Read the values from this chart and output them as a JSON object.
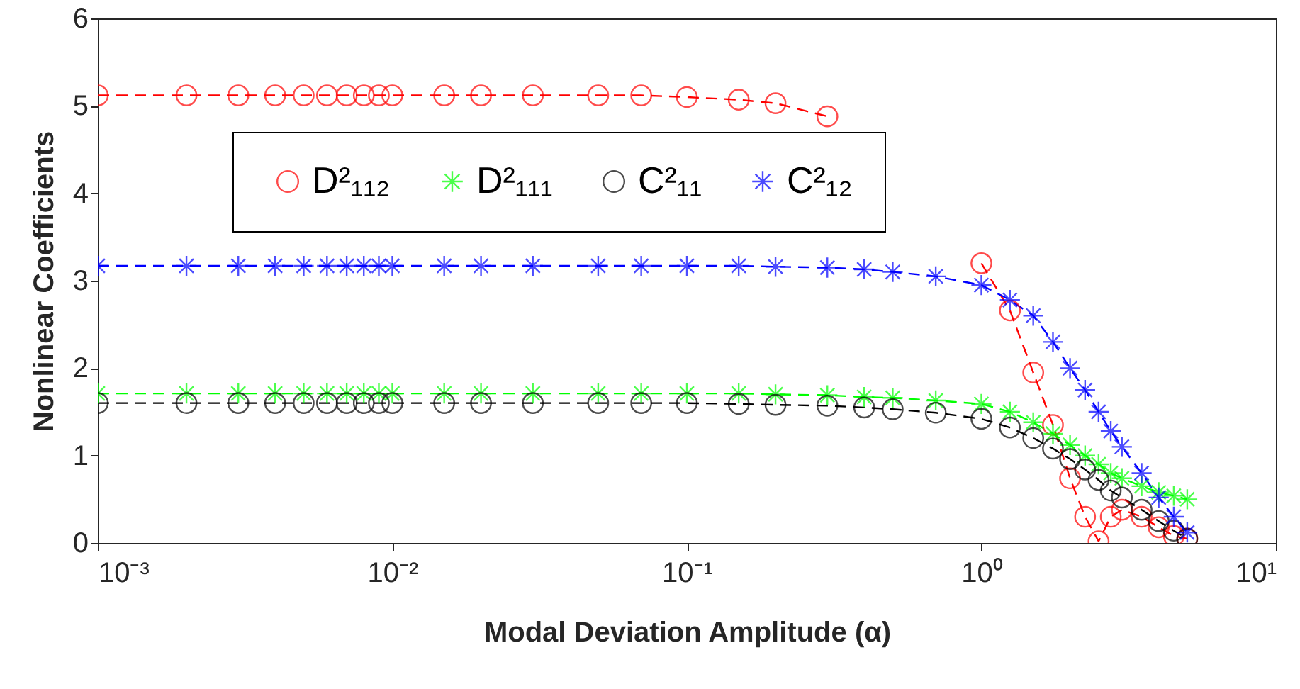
{
  "chart_data": {
    "type": "line",
    "xlabel": "Modal Deviation Amplitude (α)",
    "ylabel": "Nonlinear Coefficients",
    "log": "x",
    "x": [
      0.001,
      0.002,
      0.003,
      0.004,
      0.005,
      0.006,
      0.007,
      0.008,
      0.009,
      0.01,
      0.015,
      0.02,
      0.03,
      0.05,
      0.07,
      0.1,
      0.15,
      0.2,
      0.3,
      0.4,
      0.5,
      0.7,
      1,
      1.25,
      1.5,
      1.75,
      2,
      2.25,
      2.5,
      2.75,
      3,
      3.5,
      4,
      4.5,
      5
    ],
    "series": [
      {
        "name": "D²₁₁₂",
        "color": "#ff0000",
        "marker": "circle",
        "values": [
          5.12,
          5.12,
          5.12,
          5.12,
          5.12,
          5.12,
          5.12,
          5.12,
          5.12,
          5.12,
          5.12,
          5.12,
          5.12,
          5.12,
          5.12,
          5.1,
          5.07,
          5.03,
          4.88,
          null,
          null,
          null,
          3.2,
          2.66,
          1.95,
          1.35,
          0.74,
          0.3,
          0.02,
          0.3,
          0.38,
          0.3,
          0.18,
          0.08,
          0.05
        ]
      },
      {
        "name": "D²₁₁₁",
        "color": "#00ff00",
        "marker": "cross",
        "values": [
          1.71,
          1.71,
          1.71,
          1.71,
          1.71,
          1.71,
          1.71,
          1.71,
          1.71,
          1.71,
          1.71,
          1.71,
          1.71,
          1.71,
          1.71,
          1.71,
          1.71,
          1.7,
          1.69,
          1.67,
          1.66,
          1.63,
          1.59,
          1.5,
          1.38,
          1.25,
          1.12,
          1.0,
          0.9,
          0.8,
          0.74,
          0.65,
          0.58,
          0.54,
          0.5
        ]
      },
      {
        "name": "C²₁₁",
        "color": "#000000",
        "marker": "circle",
        "values": [
          1.6,
          1.6,
          1.6,
          1.6,
          1.6,
          1.6,
          1.6,
          1.6,
          1.6,
          1.6,
          1.6,
          1.6,
          1.6,
          1.6,
          1.6,
          1.6,
          1.59,
          1.58,
          1.57,
          1.55,
          1.53,
          1.49,
          1.42,
          1.32,
          1.2,
          1.08,
          0.96,
          0.84,
          0.72,
          0.6,
          0.52,
          0.38,
          0.25,
          0.14,
          0.05
        ]
      },
      {
        "name": "C²₁₂",
        "color": "#0000ff",
        "marker": "cross",
        "values": [
          3.17,
          3.17,
          3.17,
          3.17,
          3.17,
          3.17,
          3.17,
          3.17,
          3.17,
          3.17,
          3.17,
          3.17,
          3.17,
          3.17,
          3.17,
          3.17,
          3.17,
          3.16,
          3.15,
          3.13,
          3.1,
          3.05,
          2.95,
          2.78,
          2.6,
          2.3,
          2.0,
          1.75,
          1.5,
          1.28,
          1.1,
          0.8,
          0.52,
          0.3,
          0.12
        ]
      }
    ],
    "xlim": [
      0.001,
      10
    ],
    "xticks": [
      {
        "value": 0.001,
        "label": "10⁻³"
      },
      {
        "value": 0.01,
        "label": "10⁻²"
      },
      {
        "value": 0.1,
        "label": "10⁻¹"
      },
      {
        "value": 1,
        "label": "10⁰"
      },
      {
        "value": 10,
        "label": "10¹"
      }
    ],
    "ylim": [
      0,
      6
    ],
    "yticks": [
      0,
      1,
      2,
      3,
      4,
      5,
      6
    ],
    "grid": false,
    "legend": "top",
    "line_style": "dashed"
  }
}
